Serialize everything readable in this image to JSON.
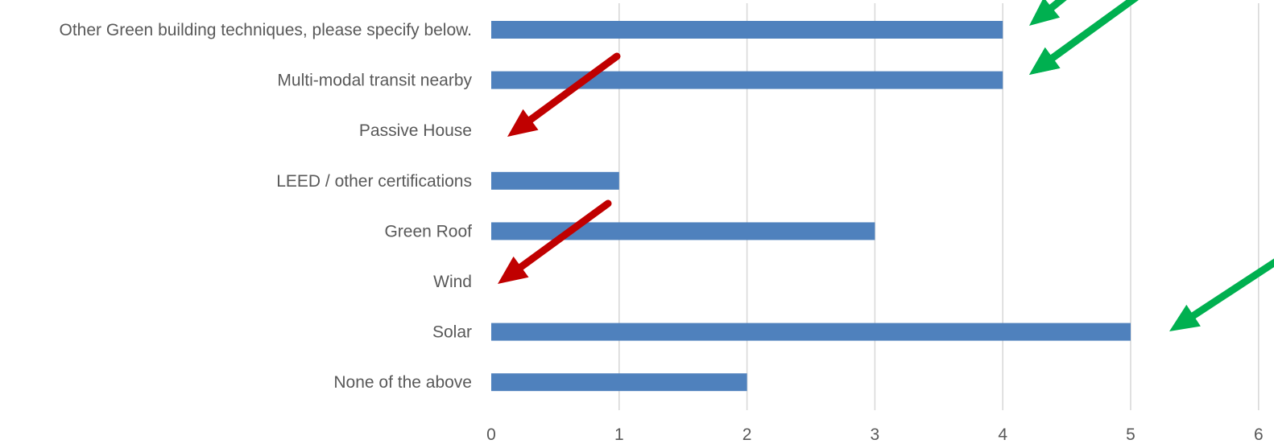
{
  "chart_data": {
    "type": "bar",
    "orientation": "horizontal",
    "categories": [
      "Other Green building techniques, please specify below.",
      "Multi-modal transit nearby",
      "Passive House",
      "LEED / other certifications",
      "Green Roof",
      "Wind",
      "Solar",
      "None of the above"
    ],
    "values": [
      4,
      4,
      0,
      1,
      3,
      0,
      5,
      2
    ],
    "xlim": [
      0,
      6
    ],
    "xticks": [
      "0",
      "1",
      "2",
      "3",
      "4",
      "5",
      "6"
    ],
    "title": "",
    "xlabel": "",
    "ylabel": "",
    "grid": "vertical",
    "legend": "none",
    "bar_color": "#4f81bd",
    "gridline_color": "#d9d9d9",
    "label_color": "#595959"
  },
  "annotations": {
    "arrows": [
      {
        "name": "green-arrow-other-green",
        "color": "#00b050",
        "points_to": "Other Green building techniques, please specify below."
      },
      {
        "name": "green-arrow-other-green-2",
        "color": "#00b050",
        "points_to": "Other Green building techniques, please specify below."
      },
      {
        "name": "green-arrow-multi-modal",
        "color": "#00b050",
        "points_to": "Multi-modal transit nearby"
      },
      {
        "name": "red-arrow-passive-house",
        "color": "#c00000",
        "points_to": "Passive House"
      },
      {
        "name": "red-arrow-wind",
        "color": "#c00000",
        "points_to": "Wind"
      },
      {
        "name": "green-arrow-solar",
        "color": "#00b050",
        "points_to": "Solar"
      }
    ]
  }
}
